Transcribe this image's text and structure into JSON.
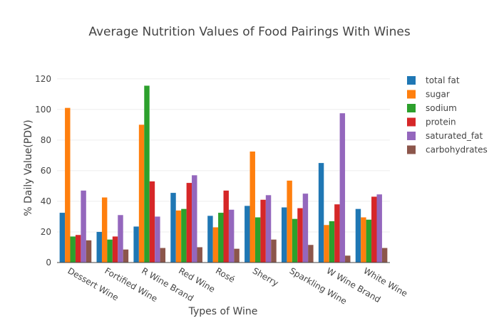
{
  "chart_data": {
    "type": "bar",
    "title": "Average Nutrition Values of Food Pairings With Wines",
    "xlabel": "Types of Wine",
    "ylabel": "% Daily Value(PDV)",
    "ylim": [
      0,
      125
    ],
    "yticks": [
      0,
      20,
      40,
      60,
      80,
      100,
      120
    ],
    "grid": true,
    "legend_position": "right",
    "categories": [
      "Dessert Wine",
      "Fortified Wine",
      "R Wine Brand",
      "Red Wine",
      "Rosé",
      "Sherry",
      "Sparkling Wine",
      "W Wine Brand",
      "White Wine"
    ],
    "series": [
      {
        "name": "total fat",
        "color": "#1f77b4",
        "values": [
          32.5,
          20,
          23.5,
          45.5,
          30.5,
          37,
          36,
          65,
          35
        ]
      },
      {
        "name": "sugar",
        "color": "#ff7f0e",
        "values": [
          101,
          42.5,
          90,
          34,
          23,
          72.5,
          53.5,
          24.5,
          29.5
        ]
      },
      {
        "name": "sodium",
        "color": "#2ca02c",
        "values": [
          17,
          15,
          115.5,
          35,
          32.5,
          29.5,
          28.5,
          27,
          28
        ]
      },
      {
        "name": "protein",
        "color": "#d62728",
        "values": [
          18,
          17,
          53,
          52,
          47,
          41,
          35.5,
          38,
          43
        ]
      },
      {
        "name": "saturated_fat",
        "color": "#9467bd",
        "values": [
          47,
          31,
          30,
          57,
          34.5,
          44,
          45,
          97.5,
          44.5
        ]
      },
      {
        "name": "carbohydrates",
        "color": "#8c564b",
        "values": [
          14.5,
          8.5,
          9.5,
          10,
          9,
          15,
          11.5,
          4.5,
          9.5
        ]
      }
    ]
  }
}
